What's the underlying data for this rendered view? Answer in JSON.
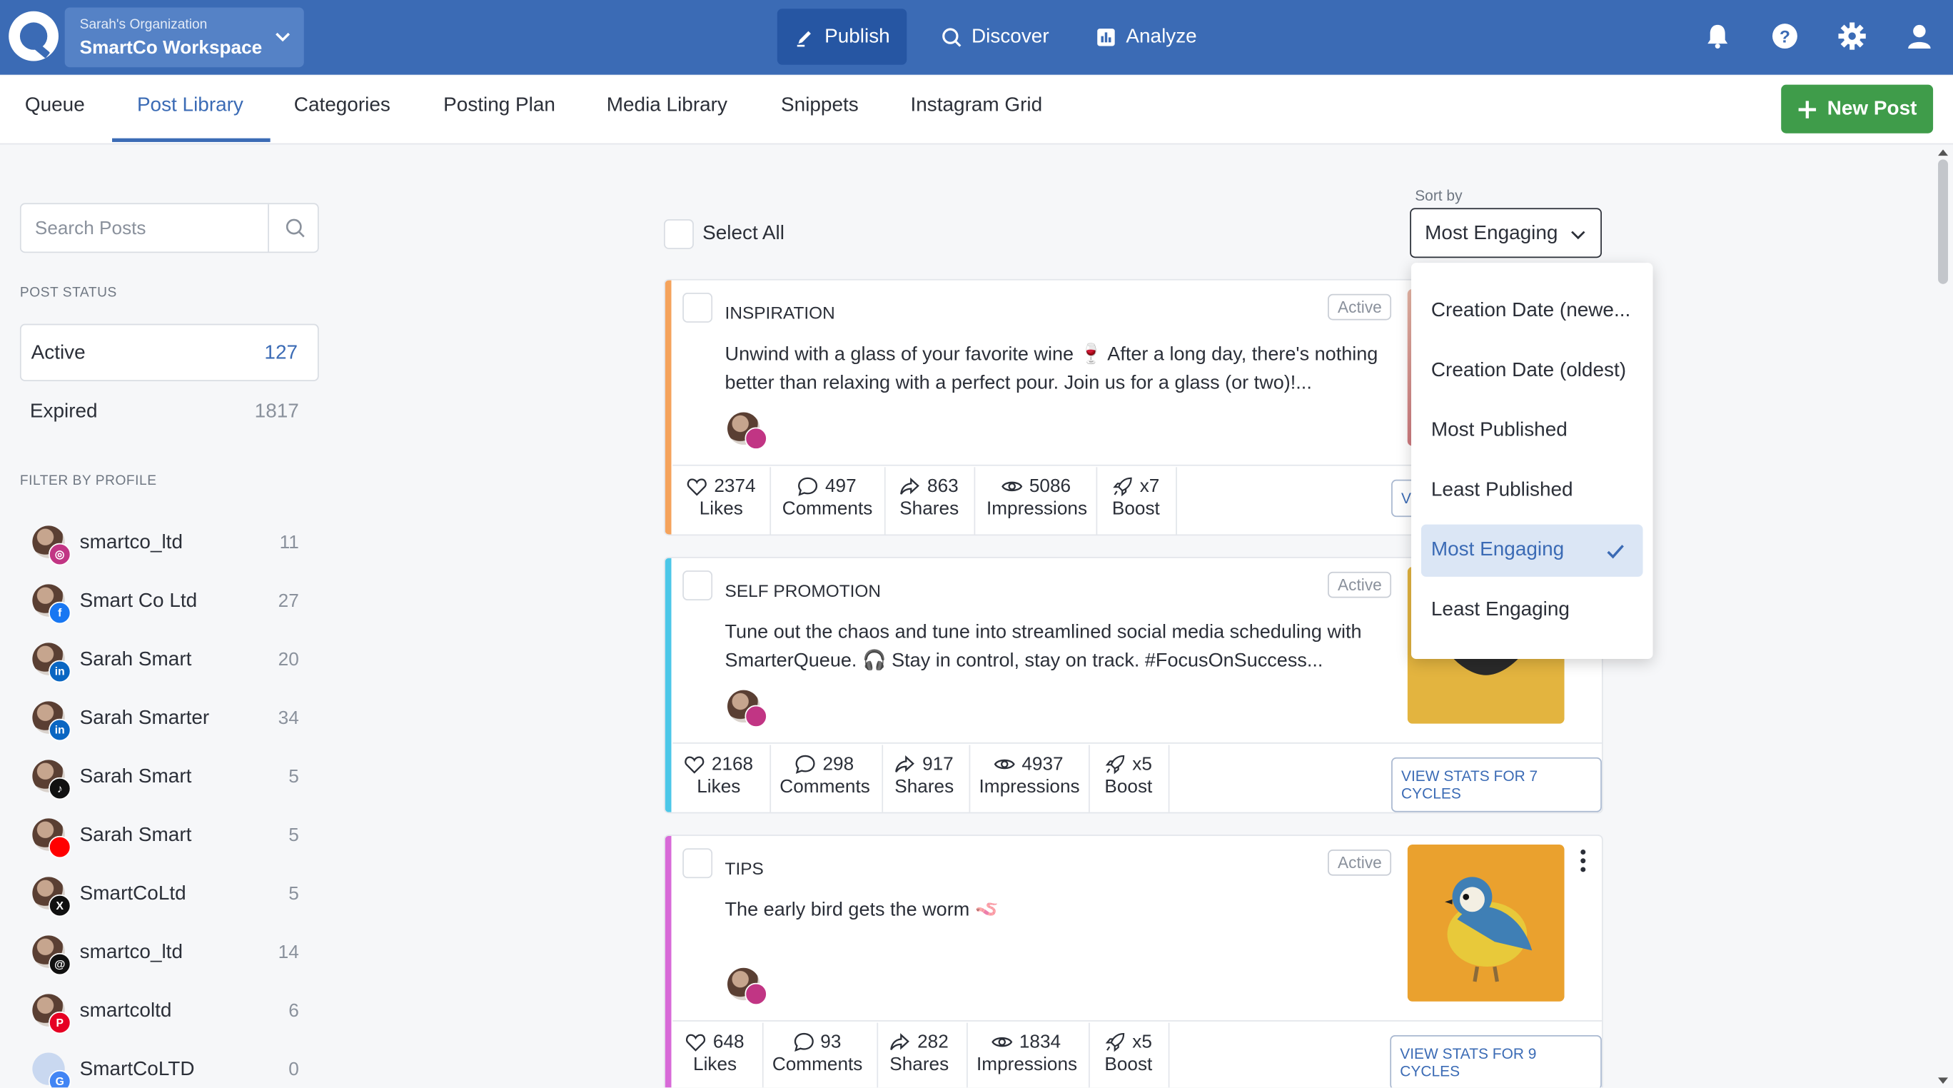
{
  "header": {
    "org_small": "Sarah's Organization",
    "org_name": "SmartCo Workspace",
    "nav": [
      {
        "label": "Publish",
        "icon": "pen-icon"
      },
      {
        "label": "Discover",
        "icon": "search-icon"
      },
      {
        "label": "Analyze",
        "icon": "chart-icon"
      }
    ]
  },
  "tabs": [
    "Queue",
    "Post Library",
    "Categories",
    "Posting Plan",
    "Media Library",
    "Snippets",
    "Instagram Grid"
  ],
  "new_post": "New Post",
  "sidebar": {
    "search_placeholder": "Search Posts",
    "status_heading": "POST STATUS",
    "statuses": [
      {
        "label": "Active",
        "count": "127"
      },
      {
        "label": "Expired",
        "count": "1817"
      }
    ],
    "profile_heading": "FILTER BY PROFILE",
    "profiles": [
      {
        "name": "smartco_ltd",
        "count": "11",
        "network": "instagram"
      },
      {
        "name": "Smart Co Ltd",
        "count": "27",
        "network": "facebook"
      },
      {
        "name": "Sarah Smart",
        "count": "20",
        "network": "linkedin"
      },
      {
        "name": "Sarah Smarter",
        "count": "34",
        "network": "linkedin"
      },
      {
        "name": "Sarah Smart",
        "count": "5",
        "network": "tiktok"
      },
      {
        "name": "Sarah Smart",
        "count": "5",
        "network": "youtube"
      },
      {
        "name": "SmartCoLtd",
        "count": "5",
        "network": "x"
      },
      {
        "name": "smartco_ltd",
        "count": "14",
        "network": "threads"
      },
      {
        "name": "smartcoltd",
        "count": "6",
        "network": "pinterest"
      },
      {
        "name": "SmartCoLTD",
        "count": "0",
        "network": "google"
      }
    ]
  },
  "main": {
    "select_all": "Select All",
    "sort_label": "Sort by",
    "sort_value": "Most Engaging",
    "sort_options": [
      "Creation Date (newe...",
      "Creation Date (oldest)",
      "Most Published",
      "Least Published",
      "Most Engaging",
      "Least Engaging"
    ],
    "posts": [
      {
        "category": "INSPIRATION",
        "status": "Active",
        "stripe": "#f5a35c",
        "text": "Unwind with a glass of your favorite wine 🍷 After a long day, there's nothing better than relaxing with a perfect pour. Join us for a glass (or two)!...",
        "likes": "2374",
        "comments": "497",
        "shares": "863",
        "impressions": "5086",
        "boost": "x7",
        "view_stats": "V"
      },
      {
        "category": "SELF PROMOTION",
        "status": "Active",
        "stripe": "#4cc7e8",
        "text": "Tune out the chaos and tune into streamlined social media scheduling with SmarterQueue. 🎧 Stay in control, stay on track. #FocusOnSuccess...",
        "likes": "2168",
        "comments": "298",
        "shares": "917",
        "impressions": "4937",
        "boost": "x5",
        "view_stats": "VIEW STATS FOR 7 CYCLES"
      },
      {
        "category": "TIPS",
        "status": "Active",
        "stripe": "#d86ad8",
        "text": "The early bird gets the worm 🪱",
        "likes": "648",
        "comments": "93",
        "shares": "282",
        "impressions": "1834",
        "boost": "x5",
        "view_stats": "VIEW STATS FOR 9 CYCLES"
      }
    ],
    "stat_labels": {
      "likes": "Likes",
      "comments": "Comments",
      "shares": "Shares",
      "impressions": "Impressions",
      "boost": "Boost"
    }
  },
  "colors": {
    "header": "#3b6bb5",
    "accent": "#3b6bb5",
    "new_post": "#3f9c4a"
  }
}
